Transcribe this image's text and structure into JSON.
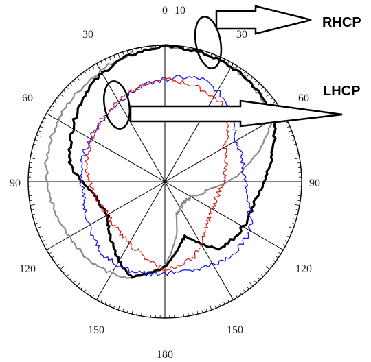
{
  "chart_data": {
    "type": "polar-line",
    "title": "",
    "angular_tick_labels": [
      "0",
      "10",
      "30",
      "60",
      "90",
      "120",
      "150",
      "180",
      "150",
      "120",
      "90",
      "60",
      "30"
    ],
    "annotations": [
      "RHCP",
      "LHCP"
    ],
    "grid": true,
    "colors": {
      "rhcp_black": "#000000",
      "rhcp_gray": "#8c8c8c",
      "lhcp_blue": "#1515e6",
      "lhcp_red": "#e01818",
      "grid": "#000000"
    },
    "series": [
      {
        "color_key": "rhcp_black",
        "theta_deg": [
          0,
          20,
          40,
          60,
          80,
          100,
          120,
          140,
          160,
          180,
          200,
          220,
          240,
          260,
          280,
          300,
          320,
          340,
          360
        ],
        "r": [
          0.99,
          0.98,
          0.96,
          0.92,
          0.78,
          0.68,
          0.66,
          0.64,
          0.42,
          0.62,
          0.74,
          0.6,
          0.48,
          0.52,
          0.7,
          0.78,
          0.88,
          0.95,
          0.99
        ]
      },
      {
        "color_key": "rhcp_gray",
        "theta_deg": [
          0,
          20,
          40,
          60,
          80,
          100,
          120,
          140,
          160,
          180,
          200,
          220,
          240,
          260,
          280,
          300,
          320,
          340,
          360
        ],
        "r": [
          0.99,
          0.98,
          0.96,
          0.9,
          0.6,
          0.32,
          0.22,
          0.2,
          0.25,
          0.62,
          0.75,
          0.8,
          0.8,
          0.84,
          0.88,
          0.9,
          0.92,
          0.96,
          0.99
        ]
      },
      {
        "color_key": "lhcp_blue",
        "theta_deg": [
          0,
          20,
          40,
          60,
          80,
          100,
          120,
          140,
          160,
          180,
          200,
          220,
          240,
          260,
          280,
          300,
          320,
          340,
          360
        ],
        "r": [
          0.75,
          0.8,
          0.73,
          0.6,
          0.58,
          0.6,
          0.72,
          0.73,
          0.68,
          0.67,
          0.7,
          0.7,
          0.64,
          0.6,
          0.62,
          0.63,
          0.65,
          0.7,
          0.75
        ]
      },
      {
        "color_key": "lhcp_red",
        "theta_deg": [
          0,
          20,
          40,
          60,
          80,
          100,
          120,
          140,
          160,
          180,
          200,
          220,
          240,
          260,
          280,
          300,
          320,
          340,
          360
        ],
        "r": [
          0.75,
          0.73,
          0.7,
          0.5,
          0.45,
          0.4,
          0.4,
          0.45,
          0.6,
          0.64,
          0.55,
          0.5,
          0.48,
          0.52,
          0.58,
          0.62,
          0.66,
          0.7,
          0.75
        ]
      }
    ]
  }
}
